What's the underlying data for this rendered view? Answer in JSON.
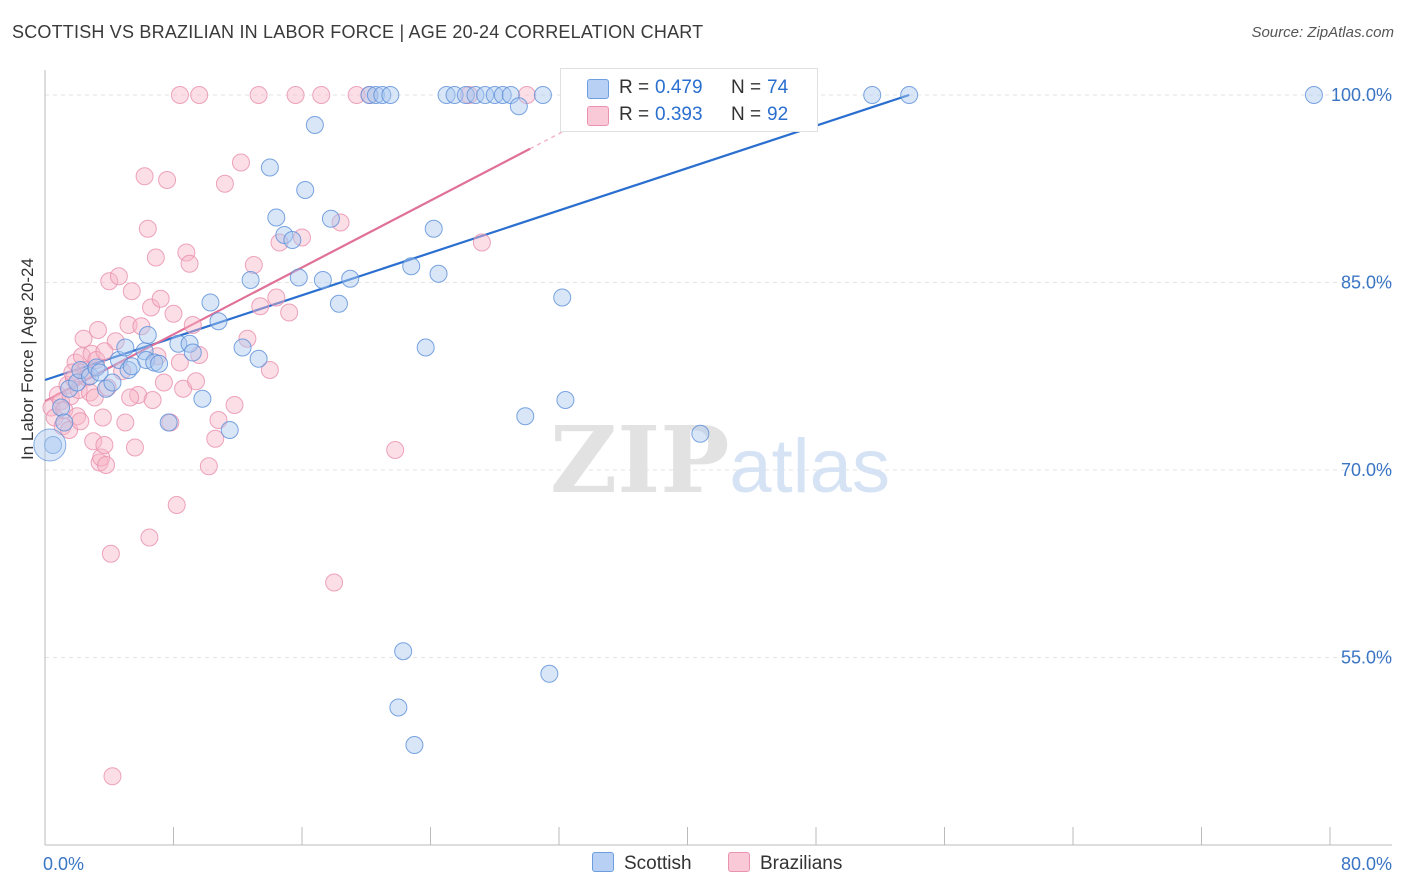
{
  "title": "SCOTTISH VS BRAZILIAN IN LABOR FORCE | AGE 20-24 CORRELATION CHART",
  "source": "Source: ZipAtlas.com",
  "watermark": "ZIPatlas",
  "colors": {
    "scottish_fill": "#a9c7ef",
    "scottish_line": "#2a6fcf",
    "brazilian_fill": "#f6b6c8",
    "brazilian_line": "#e07098",
    "axis_text": "#3a75c4",
    "grid": "#e3e3e3"
  },
  "legend": {
    "rows": [
      {
        "r_label": "R =",
        "r_value": "0.479",
        "n_label": "N =",
        "n_value": "74"
      },
      {
        "r_label": "R =",
        "r_value": "0.393",
        "n_label": "N =",
        "n_value": "92"
      }
    ]
  },
  "bottom_legend": {
    "scottish": "Scottish",
    "brazilians": "Brazilians"
  },
  "chart_data": {
    "type": "scatter",
    "title": "SCOTTISH VS BRAZILIAN IN LABOR FORCE | AGE 20-24 CORRELATION CHART",
    "xlabel": "",
    "ylabel": "In Labor Force | Age 20-24",
    "xlim": [
      0,
      80
    ],
    "ylim": [
      40,
      102
    ],
    "x_tick_labels": [
      "0.0%",
      "80.0%"
    ],
    "y_tick_values": [
      55,
      70,
      85,
      100
    ],
    "y_tick_labels": [
      "55.0%",
      "70.0%",
      "85.0%",
      "100.0%"
    ],
    "grid": true,
    "legend_position": "top-center",
    "series": [
      {
        "name": "Scottish",
        "r": 0.479,
        "n": 74,
        "trend": {
          "x": [
            0,
            53.8
          ],
          "y": [
            77.2,
            100.0
          ]
        },
        "points": [
          [
            0.5,
            72.0
          ],
          [
            1.0,
            75.0
          ],
          [
            1.5,
            76.5
          ],
          [
            2.0,
            77.0
          ],
          [
            2.2,
            78.0
          ],
          [
            2.8,
            77.5
          ],
          [
            3.2,
            78.2
          ],
          [
            3.4,
            77.8
          ],
          [
            3.8,
            76.5
          ],
          [
            4.2,
            77.0
          ],
          [
            4.6,
            78.8
          ],
          [
            5.0,
            79.8
          ],
          [
            5.2,
            78.0
          ],
          [
            5.4,
            78.3
          ],
          [
            6.2,
            79.5
          ],
          [
            6.3,
            78.8
          ],
          [
            6.4,
            80.8
          ],
          [
            6.8,
            78.6
          ],
          [
            7.1,
            78.5
          ],
          [
            7.7,
            73.8
          ],
          [
            8.3,
            80.1
          ],
          [
            9.0,
            80.1
          ],
          [
            9.2,
            79.4
          ],
          [
            9.8,
            75.7
          ],
          [
            10.3,
            83.4
          ],
          [
            10.8,
            81.9
          ],
          [
            11.5,
            73.2
          ],
          [
            12.3,
            79.8
          ],
          [
            12.8,
            85.2
          ],
          [
            13.3,
            78.9
          ],
          [
            14.0,
            94.2
          ],
          [
            14.4,
            90.2
          ],
          [
            14.9,
            88.8
          ],
          [
            15.4,
            88.4
          ],
          [
            15.8,
            85.4
          ],
          [
            16.2,
            92.4
          ],
          [
            16.8,
            97.6
          ],
          [
            17.3,
            85.2
          ],
          [
            17.8,
            90.1
          ],
          [
            18.3,
            83.3
          ],
          [
            19.0,
            85.3
          ],
          [
            20.2,
            100.0
          ],
          [
            20.6,
            100.0
          ],
          [
            21.0,
            100.0
          ],
          [
            21.5,
            100.0
          ],
          [
            22.0,
            51.0
          ],
          [
            22.3,
            55.5
          ],
          [
            22.8,
            86.3
          ],
          [
            23.0,
            48.0
          ],
          [
            23.7,
            79.8
          ],
          [
            24.2,
            89.3
          ],
          [
            24.5,
            85.7
          ],
          [
            25.0,
            100.0
          ],
          [
            25.5,
            100.0
          ],
          [
            26.2,
            100.0
          ],
          [
            26.8,
            100.0
          ],
          [
            27.4,
            100.0
          ],
          [
            28.0,
            100.0
          ],
          [
            28.5,
            100.0
          ],
          [
            29.0,
            100.0
          ],
          [
            29.5,
            99.1
          ],
          [
            29.9,
            74.3
          ],
          [
            31.0,
            100.0
          ],
          [
            31.4,
            53.7
          ],
          [
            32.2,
            83.8
          ],
          [
            32.4,
            75.6
          ],
          [
            36.7,
            100.0
          ],
          [
            38.5,
            100.0
          ],
          [
            40.8,
            72.9
          ],
          [
            45.8,
            100.0
          ],
          [
            51.5,
            100.0
          ],
          [
            53.8,
            100.0
          ],
          [
            79.0,
            100.0
          ],
          [
            1.2,
            73.8
          ]
        ]
      },
      {
        "name": "Brazilians",
        "r": 0.393,
        "n": 92,
        "trend": {
          "x": [
            0,
            30.2
          ],
          "y": [
            75.5,
            95.7
          ]
        },
        "points": [
          [
            0.4,
            75.0
          ],
          [
            0.6,
            74.2
          ],
          [
            0.8,
            76.0
          ],
          [
            1.0,
            75.5
          ],
          [
            1.1,
            73.5
          ],
          [
            1.2,
            74.8
          ],
          [
            1.4,
            76.8
          ],
          [
            1.5,
            73.2
          ],
          [
            1.6,
            75.9
          ],
          [
            1.8,
            77.3
          ],
          [
            1.9,
            78.6
          ],
          [
            2.0,
            74.3
          ],
          [
            2.1,
            76.4
          ],
          [
            2.3,
            79.1
          ],
          [
            2.4,
            80.5
          ],
          [
            2.5,
            78.0
          ],
          [
            2.6,
            77.4
          ],
          [
            2.8,
            76.2
          ],
          [
            2.9,
            79.3
          ],
          [
            3.0,
            72.3
          ],
          [
            3.1,
            75.8
          ],
          [
            3.2,
            78.8
          ],
          [
            3.3,
            81.2
          ],
          [
            3.4,
            70.6
          ],
          [
            3.5,
            71.0
          ],
          [
            3.6,
            74.2
          ],
          [
            3.7,
            72.0
          ],
          [
            3.8,
            70.4
          ],
          [
            3.9,
            76.6
          ],
          [
            4.0,
            85.1
          ],
          [
            4.1,
            63.3
          ],
          [
            4.2,
            45.5
          ],
          [
            4.4,
            80.3
          ],
          [
            4.6,
            85.5
          ],
          [
            4.8,
            77.9
          ],
          [
            5.0,
            73.8
          ],
          [
            5.2,
            81.6
          ],
          [
            5.4,
            84.3
          ],
          [
            5.6,
            71.8
          ],
          [
            5.8,
            76.0
          ],
          [
            6.0,
            81.5
          ],
          [
            6.2,
            93.5
          ],
          [
            6.4,
            89.3
          ],
          [
            6.5,
            64.6
          ],
          [
            6.6,
            83.0
          ],
          [
            6.9,
            87.0
          ],
          [
            7.0,
            79.1
          ],
          [
            7.2,
            83.7
          ],
          [
            7.4,
            77.0
          ],
          [
            7.6,
            93.2
          ],
          [
            7.8,
            73.8
          ],
          [
            8.0,
            82.5
          ],
          [
            8.2,
            67.2
          ],
          [
            8.4,
            78.6
          ],
          [
            8.6,
            76.5
          ],
          [
            8.8,
            87.4
          ],
          [
            9.0,
            86.5
          ],
          [
            9.2,
            81.6
          ],
          [
            9.6,
            79.2
          ],
          [
            10.2,
            70.3
          ],
          [
            10.6,
            72.5
          ],
          [
            10.8,
            74.0
          ],
          [
            11.2,
            92.9
          ],
          [
            11.8,
            75.2
          ],
          [
            12.2,
            94.6
          ],
          [
            12.6,
            80.5
          ],
          [
            13.0,
            86.4
          ],
          [
            13.4,
            83.1
          ],
          [
            14.0,
            78.0
          ],
          [
            14.4,
            83.8
          ],
          [
            14.6,
            88.2
          ],
          [
            15.2,
            82.6
          ],
          [
            16.0,
            88.6
          ],
          [
            17.2,
            100.0
          ],
          [
            18.0,
            61.0
          ],
          [
            18.4,
            89.8
          ],
          [
            19.4,
            100.0
          ],
          [
            20.2,
            100.0
          ],
          [
            21.8,
            71.6
          ],
          [
            26.4,
            100.0
          ],
          [
            27.2,
            88.2
          ],
          [
            30.0,
            100.0
          ],
          [
            8.4,
            100.0
          ],
          [
            9.6,
            100.0
          ],
          [
            13.3,
            100.0
          ],
          [
            15.6,
            100.0
          ],
          [
            1.7,
            77.8
          ],
          [
            2.2,
            73.9
          ],
          [
            6.7,
            75.6
          ],
          [
            9.4,
            77.1
          ],
          [
            3.7,
            79.5
          ],
          [
            5.3,
            75.8
          ]
        ]
      }
    ]
  }
}
